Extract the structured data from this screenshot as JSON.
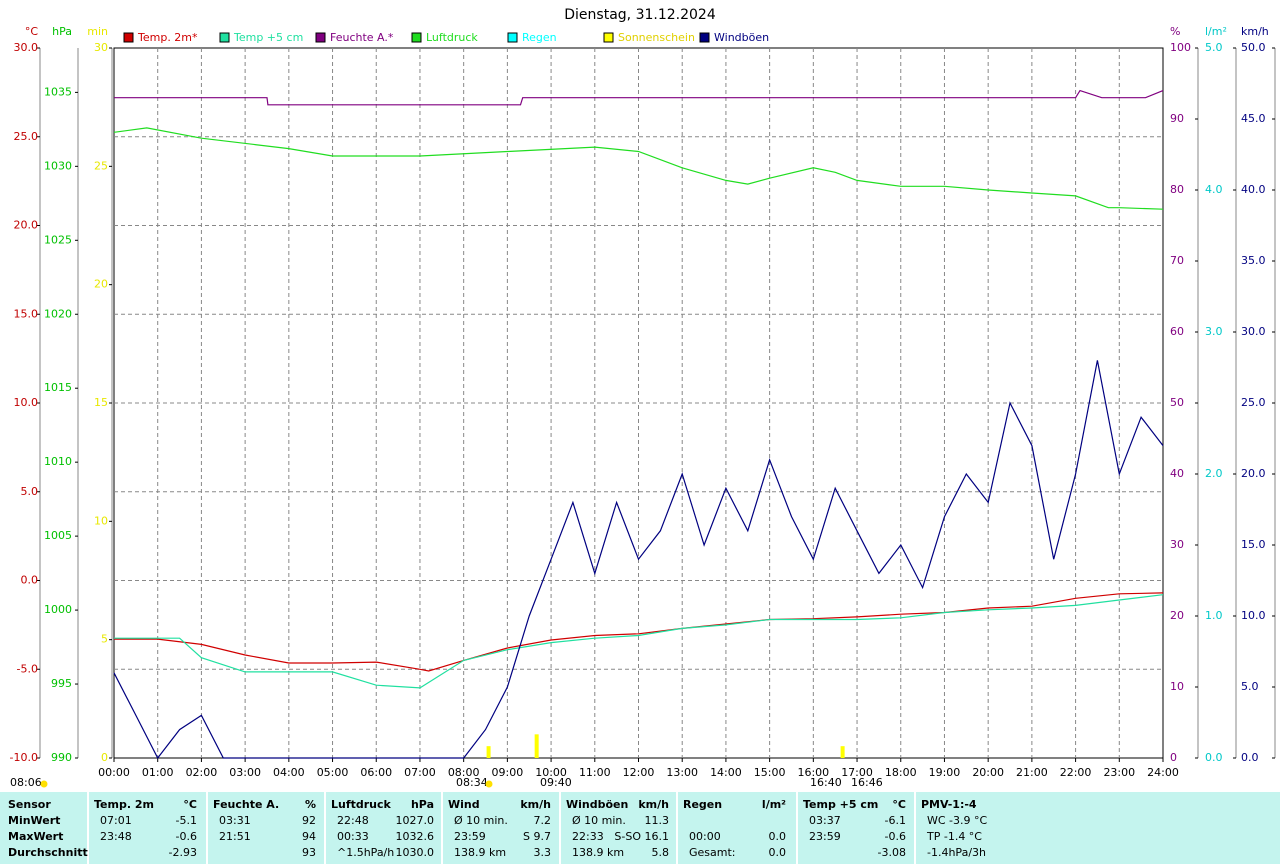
{
  "chart_data": {
    "type": "line",
    "title": "Dienstag, 31.12.2024",
    "xlim": [
      0,
      24
    ],
    "xticks": [
      {
        "value": 0,
        "label": "00:00"
      },
      {
        "value": 1,
        "label": "01:00"
      },
      {
        "value": 2,
        "label": "02:00"
      },
      {
        "value": 3,
        "label": "03:00"
      },
      {
        "value": 4,
        "label": "04:00"
      },
      {
        "value": 5,
        "label": "05:00"
      },
      {
        "value": 6,
        "label": "06:00"
      },
      {
        "value": 7,
        "label": "07:00"
      },
      {
        "value": 8,
        "label": "08:00"
      },
      {
        "value": 9,
        "label": "09:00"
      },
      {
        "value": 10,
        "label": "10:00"
      },
      {
        "value": 11,
        "label": "11:00"
      },
      {
        "value": 12,
        "label": "12:00"
      },
      {
        "value": 13,
        "label": "13:00"
      },
      {
        "value": 14,
        "label": "14:00"
      },
      {
        "value": 15,
        "label": "15:00"
      },
      {
        "value": 16,
        "label": "16:00"
      },
      {
        "value": 17,
        "label": "17:00"
      },
      {
        "value": 18,
        "label": "18:00"
      },
      {
        "value": 19,
        "label": "19:00"
      },
      {
        "value": 20,
        "label": "20:00"
      },
      {
        "value": 21,
        "label": "21:00"
      },
      {
        "value": 22,
        "label": "22:00"
      },
      {
        "value": 23,
        "label": "23:00"
      },
      {
        "value": 24,
        "label": "24:00"
      }
    ],
    "grid": true,
    "axes": {
      "temp": {
        "label": "°C",
        "color": "#c00000",
        "lim": [
          -10,
          30
        ],
        "ticks": [
          {
            "value": 30,
            "label": "30.0"
          },
          {
            "value": 25,
            "label": "25.0"
          },
          {
            "value": 20,
            "label": "20.0"
          },
          {
            "value": 15,
            "label": "15.0"
          },
          {
            "value": 10,
            "label": "10.0"
          },
          {
            "value": 5,
            "label": "5.0"
          },
          {
            "value": 0,
            "label": "0.0"
          },
          {
            "value": -5,
            "label": "-5.0"
          },
          {
            "value": -10,
            "label": "-10.0"
          }
        ]
      },
      "pressure": {
        "label": "hPa",
        "color": "#00c000",
        "lim": [
          990,
          1038
        ],
        "ticks": [
          1035,
          1030,
          1025,
          1020,
          1015,
          1010,
          1005,
          1000,
          995,
          990
        ]
      },
      "minutes": {
        "label": "min",
        "color": "#e8e800",
        "lim": [
          0,
          30
        ],
        "ticks": [
          30,
          25,
          20,
          15,
          10,
          5,
          0
        ]
      },
      "humidity": {
        "label": "%",
        "color": "#800080",
        "lim": [
          0,
          100
        ],
        "ticks": [
          100,
          90,
          80,
          70,
          60,
          50,
          40,
          30,
          20,
          10,
          0
        ]
      },
      "rain": {
        "label": "l/m²",
        "color": "#00c8c8",
        "lim": [
          0,
          5
        ],
        "ticks": [
          {
            "value": 5,
            "label": "5.0"
          },
          {
            "value": 4,
            "label": "4.0"
          },
          {
            "value": 3,
            "label": "3.0"
          },
          {
            "value": 2,
            "label": "2.0"
          },
          {
            "value": 1,
            "label": "1.0"
          },
          {
            "value": 0,
            "label": "0.0"
          }
        ]
      },
      "wind": {
        "label": "km/h",
        "color": "#000080",
        "lim": [
          0,
          50
        ],
        "ticks": [
          {
            "value": 50,
            "label": "50.0"
          },
          {
            "value": 45,
            "label": "45.0"
          },
          {
            "value": 40,
            "label": "40.0"
          },
          {
            "value": 35,
            "label": "35.0"
          },
          {
            "value": 30,
            "label": "30.0"
          },
          {
            "value": 25,
            "label": "25.0"
          },
          {
            "value": 20,
            "label": "20.0"
          },
          {
            "value": 15,
            "label": "15.0"
          },
          {
            "value": 10,
            "label": "10.0"
          },
          {
            "value": 5,
            "label": "5.0"
          },
          {
            "value": 0,
            "label": "0.0"
          }
        ]
      }
    },
    "series": [
      {
        "name": "Temp. 2m*",
        "color": "#d00000",
        "axis": "temp",
        "type": "line",
        "x": [
          0,
          1,
          2,
          3,
          4,
          5,
          6,
          7,
          7.2,
          8,
          9,
          10,
          11,
          12,
          13,
          14,
          15,
          16,
          17,
          18,
          19,
          20,
          21,
          22,
          23,
          24
        ],
        "values": [
          -3.3,
          -3.3,
          -3.6,
          -4.2,
          -4.65,
          -4.65,
          -4.6,
          -5.0,
          -5.1,
          -4.5,
          -3.8,
          -3.35,
          -3.1,
          -3.0,
          -2.7,
          -2.45,
          -2.2,
          -2.15,
          -2.05,
          -1.9,
          -1.8,
          -1.55,
          -1.45,
          -1.0,
          -0.75,
          -0.7
        ]
      },
      {
        "name": "Temp +5 cm",
        "color": "#20e0a0",
        "axis": "temp",
        "type": "line",
        "x": [
          0,
          1.5,
          2,
          3,
          4,
          5,
          6,
          7,
          8,
          9,
          10,
          11,
          12,
          13,
          14,
          15,
          16,
          17,
          18,
          19,
          20,
          21,
          22,
          23,
          24
        ],
        "values": [
          -3.25,
          -3.25,
          -4.35,
          -5.15,
          -5.15,
          -5.15,
          -5.9,
          -6.05,
          -4.5,
          -3.9,
          -3.5,
          -3.25,
          -3.1,
          -2.7,
          -2.5,
          -2.2,
          -2.2,
          -2.2,
          -2.1,
          -1.8,
          -1.65,
          -1.55,
          -1.4,
          -1.1,
          -0.8
        ]
      },
      {
        "name": "Feuchte A.*",
        "color": "#800080",
        "axis": "humidity",
        "type": "line",
        "x": [
          0,
          3.5,
          3.52,
          9.3,
          9.35,
          22,
          22.1,
          22.6,
          23.6,
          24
        ],
        "values": [
          93,
          93,
          92,
          92,
          93,
          93,
          94,
          93,
          93,
          94
        ]
      },
      {
        "name": "Luftdruck",
        "color": "#20dd20",
        "axis": "pressure",
        "type": "line",
        "x": [
          0,
          0.75,
          2,
          4,
          5,
          7,
          9,
          11,
          12,
          13,
          14,
          14.5,
          15,
          16,
          16.5,
          17,
          18,
          19,
          20,
          21,
          22,
          22.75,
          23,
          24
        ],
        "values": [
          1032.3,
          1032.6,
          1031.9,
          1031.2,
          1030.7,
          1030.7,
          1031.0,
          1031.3,
          1031.0,
          1029.9,
          1029.05,
          1028.8,
          1029.2,
          1029.9,
          1029.6,
          1029.05,
          1028.65,
          1028.65,
          1028.4,
          1028.2,
          1028.0,
          1027.2,
          1027.2,
          1027.1
        ]
      },
      {
        "name": "Regen",
        "color": "#00ffff",
        "axis": "rain",
        "type": "line"
      },
      {
        "name": "Sonnenschein",
        "color": "#ffff00",
        "axis": "minutes",
        "type": "bar",
        "x": [
          8.57,
          9.67,
          16.67
        ],
        "values": [
          0.5,
          1,
          0.5
        ]
      },
      {
        "name": "Windböen",
        "color": "#000080",
        "axis": "wind",
        "type": "line",
        "x": [
          0,
          0.5,
          1,
          1.5,
          2,
          2.5,
          3,
          3.5,
          4,
          4.5,
          5,
          5.5,
          6,
          6.5,
          7,
          7.5,
          8,
          8.5,
          9,
          9.5,
          10,
          10.5,
          11,
          11.5,
          12,
          12.5,
          13,
          13.5,
          14,
          14.5,
          15,
          15.5,
          16,
          16.5,
          17,
          17.5,
          18,
          18.5,
          19,
          19.5,
          20,
          20.5,
          21,
          21.5,
          22,
          22.5,
          23,
          23.5,
          24
        ],
        "values": [
          6,
          3,
          0,
          2,
          3,
          0,
          0,
          0,
          0,
          0,
          0,
          0,
          0,
          0,
          0,
          0,
          0,
          2,
          5,
          10,
          14,
          18,
          13,
          18,
          14,
          16,
          20,
          15,
          19,
          16,
          21,
          17,
          14,
          19,
          16,
          13,
          15,
          12,
          17,
          20,
          18,
          25,
          22,
          14,
          20,
          28,
          20,
          24,
          22
        ]
      }
    ],
    "annotations": [
      "08:06",
      "08:34",
      "09:40",
      "16:40",
      "16:46"
    ]
  },
  "table": {
    "header": {
      "label": "Sensor",
      "groups": [
        {
          "title": "Temp. 2m",
          "unit": "°C"
        },
        {
          "title": "Feuchte A.",
          "unit": "%"
        },
        {
          "title": "Luftdruck",
          "unit": "hPa"
        },
        {
          "title": "Wind",
          "unit": "km/h"
        },
        {
          "title": "Windböen",
          "unit": "km/h"
        },
        {
          "title": "Regen",
          "unit": "l/m²"
        },
        {
          "title": "Temp +5 cm",
          "unit": "°C"
        },
        {
          "title": "PMV-1:-4"
        }
      ]
    },
    "rows": [
      {
        "label": "MinWert",
        "cells": [
          {
            "left": "07:01",
            "right": "-5.1"
          },
          {
            "left": "03:31",
            "right": "92"
          },
          {
            "left": "22:48",
            "right": "1027.0"
          },
          {
            "left": "Ø 10 min.",
            "right": "7.2"
          },
          {
            "left": "Ø 10 min.",
            "right": "11.3"
          },
          {},
          {
            "left": "03:37",
            "right": "-6.1"
          },
          {
            "left": "WC -3.9 °C"
          }
        ]
      },
      {
        "label": "MaxWert",
        "cells": [
          {
            "left": "23:48",
            "right": "-0.6"
          },
          {
            "left": "21:51",
            "right": "94"
          },
          {
            "left": "00:33",
            "right": "1032.6"
          },
          {
            "left": "23:59",
            "right": "S 9.7"
          },
          {
            "left": "22:33",
            "right": "S-SO 16.1"
          },
          {
            "left": "00:00",
            "right": "0.0"
          },
          {
            "left": "23:59",
            "right": "-0.6"
          },
          {
            "left": "TP -1.4 °C"
          }
        ]
      },
      {
        "label": "Durchschnitt",
        "cells": [
          {
            "right": "-2.93"
          },
          {
            "right": "93"
          },
          {
            "left": "^1.5hPa/h",
            "right": "1030.0"
          },
          {
            "left": "138.9 km",
            "right": "3.3"
          },
          {
            "left": "138.9 km",
            "right": "5.8"
          },
          {
            "left": "Gesamt:",
            "right": "0.0"
          },
          {
            "right": "-3.08"
          },
          {
            "left": "-1.4hPa/3h"
          }
        ]
      }
    ]
  }
}
